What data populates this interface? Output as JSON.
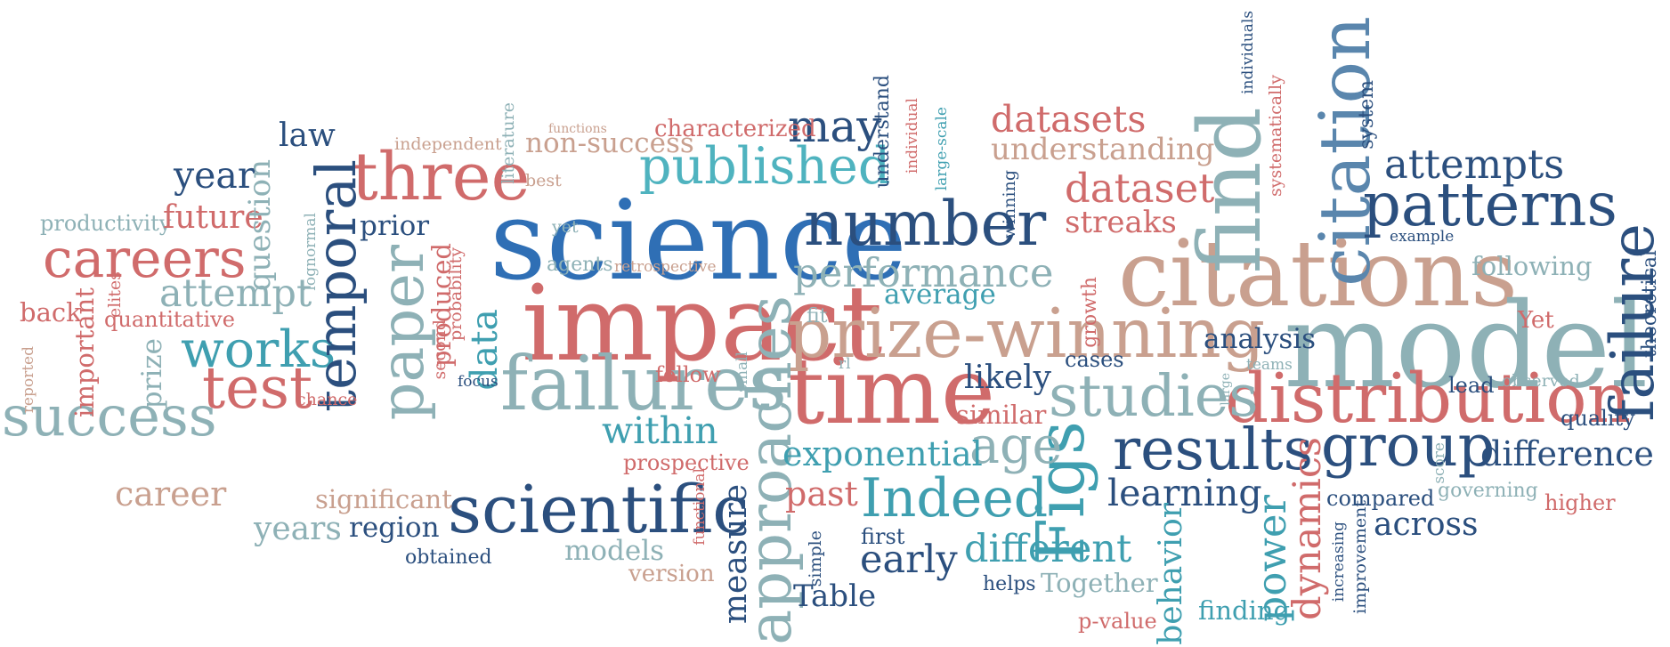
{
  "words": {
    "science": "science",
    "impact": "impact",
    "citations": "citations",
    "model": "model",
    "time": "time",
    "prize_winning": "prize-winning",
    "failures": "failures",
    "distribution": "distribution",
    "three": "three",
    "number": "number",
    "scientific": "scientific",
    "find": "find",
    "citation": "citation",
    "patterns": "patterns",
    "published": "published",
    "studies": "studies",
    "results": "results",
    "group": "group",
    "careers": "careers",
    "success": "success",
    "test": "test",
    "works": "works",
    "temporal": "temporal",
    "paper": "paper",
    "performance": "performance",
    "indeed": "Indeed",
    "figs": "Figs",
    "failure": "failure",
    "approaches": "approaches",
    "attempts": "attempts",
    "year": "year",
    "may": "may",
    "law": "law",
    "datasets": "datasets",
    "dataset": "dataset",
    "understanding": "understanding",
    "non_success": "non-success",
    "characterized": "characterized",
    "independent": "independent",
    "literature": "literature",
    "best": "best",
    "functions": "functions",
    "understand": "understand",
    "individual": "individual",
    "large_scale": "large-scale",
    "individuals": "individuals",
    "systematically": "systematically",
    "system": "system",
    "productivity": "productivity",
    "future": "future",
    "question": "question",
    "prior": "prior",
    "yet": "yet",
    "lognormal": "lognormal",
    "second": "second",
    "probability": "probability",
    "data": "data",
    "produced": "produced",
    "agents": "agents",
    "retrospective": "retrospective",
    "average": "average",
    "fit": "fit",
    "winning": "winning",
    "streaks": "streaks",
    "growth": "growth",
    "following": "following",
    "example": "example",
    "yet_cap": "Yet",
    "theoretical": "theoretical",
    "elites": "elites",
    "back": "back",
    "attempt": "attempt",
    "important": "important",
    "quantitative": "quantitative",
    "reported": "reported",
    "prize": "prize",
    "chance": "chance",
    "focus": "focus",
    "follow": "follow",
    "small": "small",
    "rl": "rl",
    "analysis": "analysis",
    "likely": "likely",
    "cases": "cases",
    "large": "large",
    "teams": "teams",
    "lead": "lead",
    "observed": "observed",
    "quality": "quality",
    "similar": "similar",
    "within": "within",
    "age": "age",
    "exponential": "exponential",
    "difference": "difference",
    "score": "score",
    "prospective": "prospective",
    "career": "career",
    "significant": "significant",
    "years": "years",
    "region": "region",
    "obtained": "obtained",
    "models": "models",
    "version": "version",
    "functional": "functional",
    "measure": "measure",
    "past": "past",
    "first": "first",
    "simple": "simple",
    "early": "early",
    "different": "different",
    "table": "Table",
    "helps": "helps",
    "together": "Together",
    "learning": "learning",
    "behavior": "behavior",
    "power": "power",
    "finding": "finding",
    "p_value": "p-value",
    "dynamics": "dynamics",
    "increasing": "increasing",
    "improvement": "improvement",
    "compared": "compared",
    "governing": "governing",
    "across": "across",
    "higher": "higher"
  },
  "colors": {
    "blue": "#2f6fb5",
    "teal": "#3f9fb0",
    "rose": "#d06b6b",
    "navy": "#2b4f7e",
    "sage": "#8eb1b6",
    "tan": "#c9a08f",
    "salmon": "#d9867d",
    "slate": "#4a6b8a",
    "cyan": "#4fb3bf",
    "steel": "#5a86ad",
    "pink": "#e08a90"
  }
}
